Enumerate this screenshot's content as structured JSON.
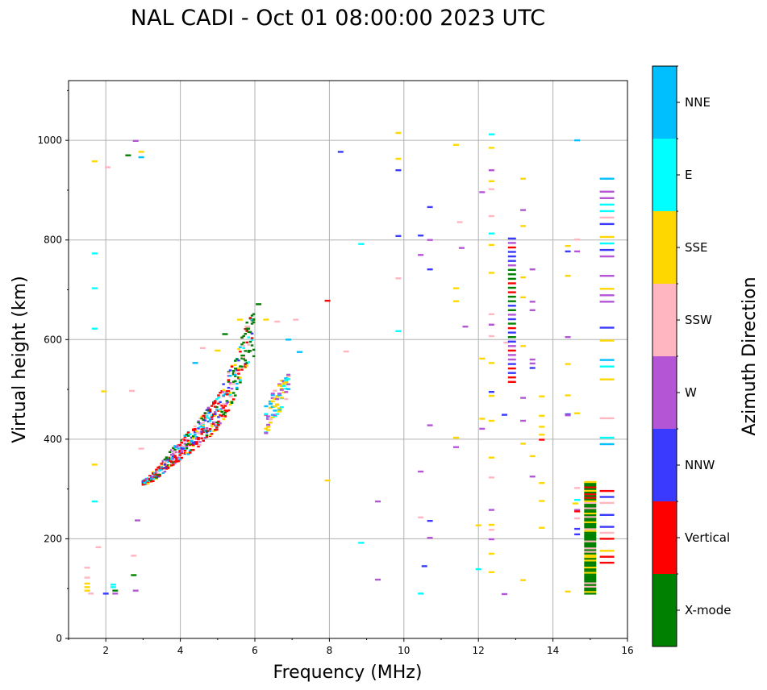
{
  "chart_data": {
    "type": "scatter",
    "title": "NAL CADI - Oct 01 08:00:00 2023 UTC",
    "xlabel": "Frequency (MHz)",
    "ylabel": "Virtual height (km)",
    "xlim": [
      1,
      16
    ],
    "ylim": [
      0,
      1120
    ],
    "xticks": [
      2,
      4,
      6,
      8,
      10,
      12,
      14,
      16
    ],
    "yticks": [
      0,
      200,
      400,
      600,
      800,
      1000
    ],
    "grid": true,
    "colorbar": {
      "title": "Azimuth Direction",
      "categories": [
        {
          "name": "X-mode",
          "color": "#008000"
        },
        {
          "name": "Vertical",
          "color": "#ff0000"
        },
        {
          "name": "NNW",
          "color": "#3a3aff"
        },
        {
          "name": "W",
          "color": "#b455d6"
        },
        {
          "name": "SSW",
          "color": "#ffb6c1"
        },
        {
          "name": "SSE",
          "color": "#ffd700"
        },
        {
          "name": "E",
          "color": "#00ffff"
        },
        {
          "name": "NNE",
          "color": "#00bfff"
        }
      ]
    },
    "points": [
      [
        1.7,
        958,
        "SSE"
      ],
      [
        1.7,
        773,
        "E"
      ],
      [
        1.7,
        703,
        "E"
      ],
      [
        1.7,
        622,
        "E"
      ],
      [
        1.7,
        349,
        "SSE"
      ],
      [
        1.7,
        275,
        "E"
      ],
      [
        1.5,
        142,
        "SSW"
      ],
      [
        1.5,
        122,
        "SSW"
      ],
      [
        1.5,
        110,
        "SSE"
      ],
      [
        1.5,
        103,
        "SSE"
      ],
      [
        1.5,
        96,
        "SSE"
      ],
      [
        1.6,
        90,
        "SSW"
      ],
      [
        1.8,
        183,
        "SSW"
      ],
      [
        1.95,
        496,
        "SSE"
      ],
      [
        2.0,
        90,
        "NNW"
      ],
      [
        2.05,
        946,
        "SSW"
      ],
      [
        2.2,
        108,
        "E"
      ],
      [
        2.2,
        103,
        "E"
      ],
      [
        2.25,
        96,
        "X-mode"
      ],
      [
        2.25,
        90,
        "W"
      ],
      [
        2.6,
        970,
        "X-mode"
      ],
      [
        2.7,
        497,
        "SSW"
      ],
      [
        2.75,
        166,
        "SSW"
      ],
      [
        2.75,
        127,
        "X-mode"
      ],
      [
        2.8,
        999,
        "W"
      ],
      [
        2.8,
        96,
        "W"
      ],
      [
        2.85,
        237,
        "W"
      ],
      [
        2.95,
        977,
        "SSE"
      ],
      [
        2.95,
        966,
        "NNE"
      ],
      [
        2.95,
        381,
        "SSW"
      ],
      [
        4.4,
        553,
        "NNE"
      ],
      [
        4.6,
        583,
        "SSW"
      ],
      [
        5.0,
        578,
        "SSE"
      ],
      [
        5.2,
        611,
        "X-mode"
      ],
      [
        5.6,
        640,
        "SSE"
      ],
      [
        5.8,
        626,
        "SSW"
      ],
      [
        6.1,
        671,
        "X-mode"
      ],
      [
        6.3,
        640,
        "SSE"
      ],
      [
        6.6,
        636,
        "SSW"
      ],
      [
        7.1,
        640,
        "SSW"
      ],
      [
        7.2,
        575,
        "NNE"
      ],
      [
        6.9,
        600,
        "NNE"
      ],
      [
        7.95,
        678,
        "Vertical"
      ],
      [
        7.95,
        317,
        "SSE"
      ],
      [
        8.3,
        977,
        "NNW"
      ],
      [
        8.45,
        576,
        "SSW"
      ],
      [
        8.85,
        792,
        "E"
      ],
      [
        8.85,
        192,
        "E"
      ],
      [
        9.3,
        275,
        "W"
      ],
      [
        9.3,
        118,
        "W"
      ],
      [
        9.85,
        1015,
        "SSE"
      ],
      [
        9.85,
        963,
        "SSE"
      ],
      [
        9.85,
        940,
        "NNW"
      ],
      [
        9.85,
        808,
        "NNW"
      ],
      [
        9.85,
        723,
        "SSW"
      ],
      [
        9.85,
        617,
        "E"
      ],
      [
        10.45,
        809,
        "NNW"
      ],
      [
        10.45,
        770,
        "W"
      ],
      [
        10.45,
        335,
        "W"
      ],
      [
        10.45,
        243,
        "SSW"
      ],
      [
        10.45,
        90,
        "E"
      ],
      [
        10.55,
        145,
        "NNW"
      ],
      [
        10.7,
        866,
        "NNW"
      ],
      [
        10.7,
        800,
        "W"
      ],
      [
        10.7,
        741,
        "NNW"
      ],
      [
        10.7,
        428,
        "W"
      ],
      [
        10.7,
        236,
        "NNW"
      ],
      [
        10.7,
        202,
        "W"
      ],
      [
        11.4,
        991,
        "SSE"
      ],
      [
        11.4,
        703,
        "SSE"
      ],
      [
        11.4,
        677,
        "SSE"
      ],
      [
        11.4,
        403,
        "SSE"
      ],
      [
        11.4,
        384,
        "W"
      ],
      [
        11.5,
        836,
        "SSW"
      ],
      [
        11.55,
        784,
        "W"
      ],
      [
        11.65,
        626,
        "W"
      ],
      [
        12.0,
        227,
        "SSE"
      ],
      [
        12.0,
        139,
        "E"
      ],
      [
        12.1,
        896,
        "W"
      ],
      [
        12.1,
        562,
        "SSE"
      ],
      [
        12.1,
        441,
        "SSE"
      ],
      [
        12.1,
        421,
        "W"
      ],
      [
        12.35,
        1012,
        "E"
      ],
      [
        12.35,
        985,
        "SSE"
      ],
      [
        12.35,
        940,
        "W"
      ],
      [
        12.35,
        918,
        "SSE"
      ],
      [
        12.35,
        902,
        "SSW"
      ],
      [
        12.35,
        848,
        "SSW"
      ],
      [
        12.35,
        813,
        "E"
      ],
      [
        12.35,
        790,
        "SSE"
      ],
      [
        12.35,
        734,
        "SSE"
      ],
      [
        12.35,
        651,
        "SSW"
      ],
      [
        12.35,
        630,
        "W"
      ],
      [
        12.35,
        607,
        "SSW"
      ],
      [
        12.35,
        553,
        "SSE"
      ],
      [
        12.35,
        495,
        "NNW"
      ],
      [
        12.35,
        487,
        "SSE"
      ],
      [
        12.35,
        437,
        "SSE"
      ],
      [
        12.35,
        363,
        "SSE"
      ],
      [
        12.35,
        323,
        "SSW"
      ],
      [
        12.35,
        258,
        "W"
      ],
      [
        12.35,
        228,
        "SSE"
      ],
      [
        12.35,
        218,
        "SSW"
      ],
      [
        12.35,
        199,
        "W"
      ],
      [
        12.35,
        170,
        "SSE"
      ],
      [
        12.35,
        133,
        "SSE"
      ],
      [
        12.7,
        449,
        "NNW"
      ],
      [
        12.7,
        89,
        "W"
      ],
      [
        12.75,
        594,
        "SSW"
      ],
      [
        13.2,
        923,
        "SSE"
      ],
      [
        13.2,
        860,
        "W"
      ],
      [
        13.2,
        828,
        "SSE"
      ],
      [
        13.2,
        725,
        "SSE"
      ],
      [
        13.2,
        685,
        "SSE"
      ],
      [
        13.2,
        587,
        "SSE"
      ],
      [
        13.2,
        483,
        "W"
      ],
      [
        13.2,
        437,
        "W"
      ],
      [
        13.2,
        391,
        "SSE"
      ],
      [
        13.2,
        117,
        "SSE"
      ],
      [
        13.45,
        741,
        "W"
      ],
      [
        13.45,
        676,
        "W"
      ],
      [
        13.45,
        659,
        "W"
      ],
      [
        13.45,
        560,
        "W"
      ],
      [
        13.45,
        552,
        "W"
      ],
      [
        13.45,
        543,
        "NNW"
      ],
      [
        13.45,
        366,
        "SSE"
      ],
      [
        13.45,
        325,
        "W"
      ],
      [
        13.7,
        486,
        "SSE"
      ],
      [
        13.7,
        447,
        "SSE"
      ],
      [
        13.7,
        425,
        "SSE"
      ],
      [
        13.7,
        409,
        "SSE"
      ],
      [
        13.7,
        399,
        "Vertical"
      ],
      [
        13.7,
        312,
        "SSE"
      ],
      [
        13.7,
        276,
        "SSE"
      ],
      [
        13.7,
        222,
        "SSE"
      ],
      [
        14.4,
        788,
        "SSE"
      ],
      [
        14.4,
        777,
        "NNW"
      ],
      [
        14.4,
        728,
        "SSE"
      ],
      [
        14.4,
        605,
        "W"
      ],
      [
        14.4,
        551,
        "SSE"
      ],
      [
        14.4,
        488,
        "SSE"
      ],
      [
        14.4,
        450,
        "NNW"
      ],
      [
        14.4,
        448,
        "W"
      ],
      [
        14.4,
        94,
        "SSE"
      ],
      [
        14.65,
        1000,
        "NNE"
      ],
      [
        14.65,
        801,
        "SSW"
      ],
      [
        14.65,
        777,
        "W"
      ],
      [
        14.65,
        452,
        "SSE"
      ],
      [
        14.65,
        302,
        "SSW"
      ],
      [
        14.65,
        278,
        "E"
      ],
      [
        14.65,
        258,
        "W"
      ],
      [
        14.65,
        255,
        "Vertical"
      ],
      [
        14.65,
        241,
        "SSW"
      ],
      [
        14.65,
        220,
        "NNW"
      ],
      [
        14.65,
        209,
        "NNW"
      ],
      [
        14.6,
        271,
        "SSE"
      ]
    ],
    "trace_main": [
      [
        3.0,
        310
      ],
      [
        3.2,
        318
      ],
      [
        3.4,
        330
      ],
      [
        3.6,
        345
      ],
      [
        3.8,
        360
      ],
      [
        4.0,
        372
      ],
      [
        4.2,
        385
      ],
      [
        4.4,
        398
      ],
      [
        4.6,
        412
      ],
      [
        4.8,
        428
      ],
      [
        5.0,
        445
      ],
      [
        5.2,
        470
      ],
      [
        5.4,
        500
      ],
      [
        5.6,
        540
      ],
      [
        5.8,
        580
      ],
      [
        6.0,
        600
      ]
    ],
    "trace_o": [
      [
        6.3,
        440
      ],
      [
        6.5,
        465
      ],
      [
        6.7,
        485
      ],
      [
        6.9,
        510
      ]
    ],
    "column_12_9": {
      "x": 12.9,
      "y_range": [
        515,
        805
      ]
    },
    "column_15_45": {
      "x": 15.45,
      "y_range": [
        390,
        945
      ]
    },
    "column_15_0": {
      "x": 15.0,
      "y_range": [
        90,
        315
      ]
    }
  }
}
